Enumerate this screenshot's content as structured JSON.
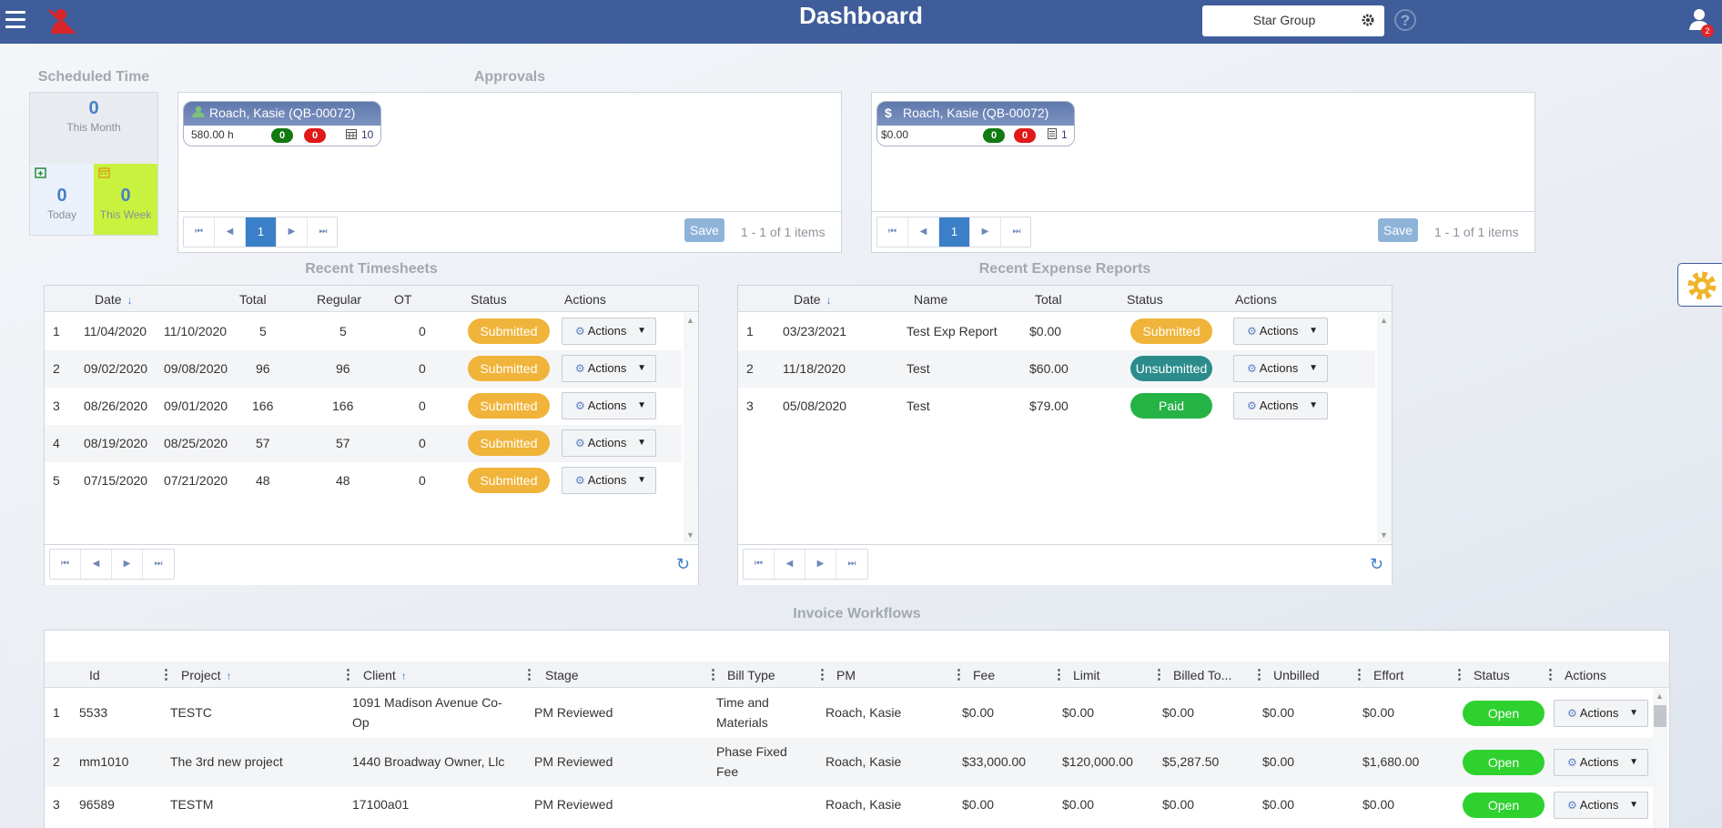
{
  "header": {
    "title": "Dashboard",
    "company": "Star Group",
    "help_glyph": "?",
    "notification_count": "2",
    "colors": {
      "bar": "#3f5d9b",
      "logo": "#d9262b"
    }
  },
  "scheduled_time": {
    "title": "Scheduled Time",
    "this_month": {
      "value": "0",
      "label": "This Month"
    },
    "today": {
      "value": "0",
      "label": "Today"
    },
    "this_week": {
      "value": "0",
      "label": "This Week"
    }
  },
  "approvals": {
    "title": "Approvals",
    "timesheet_card": {
      "name": "Roach, Kasie (QB-00072)",
      "amount": "580.00 h",
      "green_count": "0",
      "red_count": "0",
      "item_count": "10"
    },
    "expense_card": {
      "name": "Roach, Kasie (QB-00072)",
      "amount": "$0.00",
      "green_count": "0",
      "red_count": "0",
      "item_count": "1"
    },
    "pager_page": "1",
    "save_label": "Save",
    "items_text": "1 - 1 of 1 items"
  },
  "recent_timesheets": {
    "title": "Recent Timesheets",
    "columns": {
      "date": "Date",
      "total": "Total",
      "regular": "Regular",
      "ot": "OT",
      "status": "Status",
      "actions": "Actions"
    },
    "rows": [
      {
        "n": "1",
        "start": "11/04/2020",
        "end": "11/10/2020",
        "total": "5",
        "regular": "5",
        "ot": "0",
        "status": "Submitted",
        "action": "Actions"
      },
      {
        "n": "2",
        "start": "09/02/2020",
        "end": "09/08/2020",
        "total": "96",
        "regular": "96",
        "ot": "0",
        "status": "Submitted",
        "action": "Actions"
      },
      {
        "n": "3",
        "start": "08/26/2020",
        "end": "09/01/2020",
        "total": "166",
        "regular": "166",
        "ot": "0",
        "status": "Submitted",
        "action": "Actions"
      },
      {
        "n": "4",
        "start": "08/19/2020",
        "end": "08/25/2020",
        "total": "57",
        "regular": "57",
        "ot": "0",
        "status": "Submitted",
        "action": "Actions"
      },
      {
        "n": "5",
        "start": "07/15/2020",
        "end": "07/21/2020",
        "total": "48",
        "regular": "48",
        "ot": "0",
        "status": "Submitted",
        "action": "Actions"
      }
    ]
  },
  "recent_expenses": {
    "title": "Recent Expense Reports",
    "columns": {
      "date": "Date",
      "name": "Name",
      "total": "Total",
      "status": "Status",
      "actions": "Actions"
    },
    "rows": [
      {
        "n": "1",
        "date": "03/23/2021",
        "name": "Test Exp Report",
        "total": "$0.00",
        "status": "Submitted",
        "action": "Actions"
      },
      {
        "n": "2",
        "date": "11/18/2020",
        "name": "Test",
        "total": "$60.00",
        "status": "Unsubmitted",
        "action": "Actions"
      },
      {
        "n": "3",
        "date": "05/08/2020",
        "name": "Test",
        "total": "$79.00",
        "status": "Paid",
        "action": "Actions"
      }
    ]
  },
  "invoice_workflows": {
    "title": "Invoice Workflows",
    "columns": {
      "id": "Id",
      "project": "Project",
      "client": "Client",
      "stage": "Stage",
      "bill_type": "Bill Type",
      "pm": "PM",
      "fee": "Fee",
      "limit": "Limit",
      "billed": "Billed To...",
      "unbilled": "Unbilled",
      "effort": "Effort",
      "status": "Status",
      "actions": "Actions"
    },
    "rows": [
      {
        "n": "1",
        "id": "5533",
        "project": "TESTC",
        "client_l1": "1091 Madison Avenue Co-",
        "client_l2": "Op",
        "stage": "PM Reviewed",
        "bill_l1": "Time and",
        "bill_l2": "Materials",
        "pm": "Roach, Kasie",
        "fee": "$0.00",
        "limit": "$0.00",
        "billed": "$0.00",
        "unbilled": "$0.00",
        "effort": "$0.00",
        "status": "Open",
        "action": "Actions"
      },
      {
        "n": "2",
        "id": "mm1010",
        "project": "The 3rd new project",
        "client_l1": "1440 Broadway Owner, Llc",
        "client_l2": "",
        "stage": "PM Reviewed",
        "bill_l1": "Phase Fixed",
        "bill_l2": "Fee",
        "pm": "Roach, Kasie",
        "fee": "$33,000.00",
        "limit": "$120,000.00",
        "billed": "$5,287.50",
        "unbilled": "$0.00",
        "effort": "$1,680.00",
        "status": "Open",
        "action": "Actions"
      },
      {
        "n": "3",
        "id": "96589",
        "project": "TESTM",
        "client_l1": "17100a01",
        "client_l2": "",
        "stage": "PM Reviewed",
        "bill_l1": "",
        "bill_l2": "",
        "pm": "Roach, Kasie",
        "fee": "$0.00",
        "limit": "$0.00",
        "billed": "$0.00",
        "unbilled": "$0.00",
        "effort": "$0.00",
        "status": "Open",
        "action": "Actions"
      }
    ]
  }
}
